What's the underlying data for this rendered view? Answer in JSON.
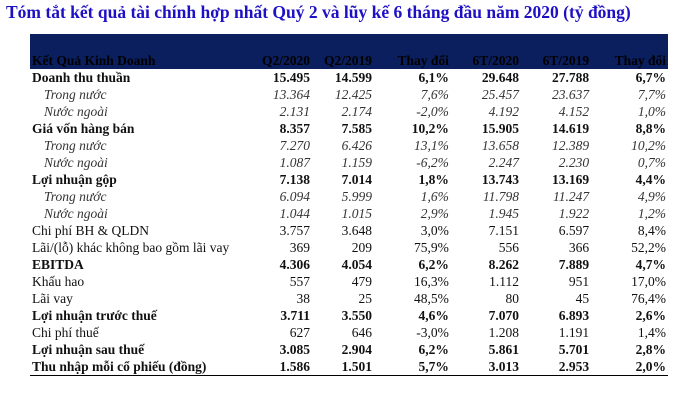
{
  "title": "Tóm tắt kết quả tài chính hợp nhất Quý 2 và lũy kế 6 tháng đầu năm 2020 (tỷ đồng)",
  "colors": {
    "title": "#1e10c4",
    "header_bg": "#0b1f5e"
  },
  "headers": [
    "Kết Quả Kinh Doanh",
    "Q2/2020",
    "Q2/2019",
    "Thay đổi",
    "6T/2020",
    "6T/2019",
    "Thay đổi"
  ],
  "rows": [
    {
      "style": "bold",
      "cells": [
        "Doanh thu thuần",
        "15.495",
        "14.599",
        "6,1%",
        "29.648",
        "27.788",
        "6,7%"
      ]
    },
    {
      "style": "sub",
      "cells": [
        "Trong nước",
        "13.364",
        "12.425",
        "7,6%",
        "25.457",
        "23.637",
        "7,7%"
      ]
    },
    {
      "style": "sub",
      "cells": [
        "Nước ngoài",
        "2.131",
        "2.174",
        "-2,0%",
        "4.192",
        "4.152",
        "1,0%"
      ]
    },
    {
      "style": "bold",
      "cells": [
        "Giá vốn hàng bán",
        "8.357",
        "7.585",
        "10,2%",
        "15.905",
        "14.619",
        "8,8%"
      ]
    },
    {
      "style": "sub",
      "cells": [
        "Trong nước",
        "7.270",
        "6.426",
        "13,1%",
        "13.658",
        "12.389",
        "10,2%"
      ]
    },
    {
      "style": "sub",
      "cells": [
        "Nước ngoài",
        "1.087",
        "1.159",
        "-6,2%",
        "2.247",
        "2.230",
        "0,7%"
      ]
    },
    {
      "style": "bold",
      "cells": [
        "Lợi nhuận gộp",
        "7.138",
        "7.014",
        "1,8%",
        "13.743",
        "13.169",
        "4,4%"
      ]
    },
    {
      "style": "sub",
      "cells": [
        "Trong nước",
        "6.094",
        "5.999",
        "1,6%",
        "11.798",
        "11.247",
        "4,9%"
      ]
    },
    {
      "style": "sub",
      "cells": [
        "Nước ngoài",
        "1.044",
        "1.015",
        "2,9%",
        "1.945",
        "1.922",
        "1,2%"
      ]
    },
    {
      "style": "normal",
      "cells": [
        "Chi phí BH & QLDN",
        "3.757",
        "3.648",
        "3,0%",
        "7.151",
        "6.597",
        "8,4%"
      ]
    },
    {
      "style": "normal",
      "cells": [
        "Lãi/(lỗ) khác không bao gồm lãi vay",
        "369",
        "209",
        "75,9%",
        "556",
        "366",
        "52,2%"
      ]
    },
    {
      "style": "bold",
      "cells": [
        "EBITDA",
        "4.306",
        "4.054",
        "6,2%",
        "8.262",
        "7.889",
        "4,7%"
      ]
    },
    {
      "style": "normal",
      "cells": [
        "Khấu hao",
        "557",
        "479",
        "16,3%",
        "1.112",
        "951",
        "17,0%"
      ]
    },
    {
      "style": "normal",
      "cells": [
        "Lãi vay",
        "38",
        "25",
        "48,5%",
        "80",
        "45",
        "76,4%"
      ]
    },
    {
      "style": "bold",
      "cells": [
        "Lợi nhuận trước thuế",
        "3.711",
        "3.550",
        "4,6%",
        "7.070",
        "6.893",
        "2,6%"
      ]
    },
    {
      "style": "normal",
      "cells": [
        "Chi phí thuế",
        "627",
        "646",
        "-3,0%",
        "1.208",
        "1.191",
        "1,4%"
      ]
    },
    {
      "style": "bold",
      "cells": [
        "Lợi nhuận sau thuế",
        "3.085",
        "2.904",
        "6,2%",
        "5.861",
        "5.701",
        "2,8%"
      ]
    },
    {
      "style": "bold",
      "cells": [
        "Thu nhập mỗi cổ phiếu (đồng)",
        "1.586",
        "1.501",
        "5,7%",
        "3.013",
        "2.953",
        "2,0%"
      ]
    }
  ]
}
